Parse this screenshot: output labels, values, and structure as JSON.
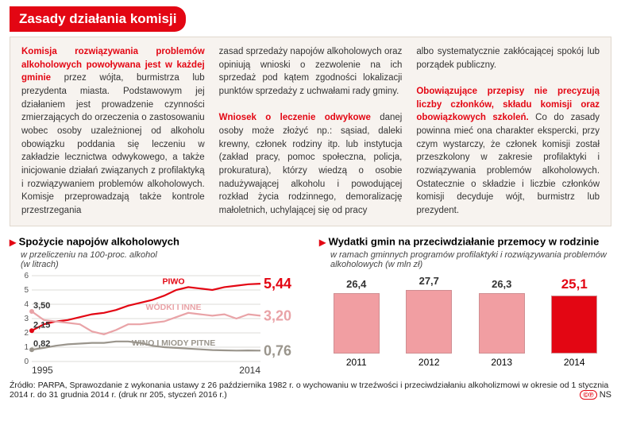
{
  "header": {
    "title": "Zasady działania komisji"
  },
  "text": {
    "col1_lead": "Komisja rozwiązywania problemów alkoholowych powoływana jest w każdej gminie",
    "col1_rest": " przez wójta, burmistrza lub prezydenta miasta. Podstawowym jej działaniem jest prowadzenie czynności zmierzających do orzeczenia o zastosowaniu wobec osoby uzależnionej od alkoholu obowiązku poddania się leczeniu w zakładzie lecznictwa odwykowego, a także inicjowanie działań związanych z profilaktyką i rozwiązywaniem problemów alkoholowych. Komisje przeprowadzają także kontrole przestrzegania",
    "col2_top": "zasad sprzedaży napojów alkoholowych oraz opiniują wnioski o zezwolenie na ich sprzedaż pod kątem zgodności lokalizacji punktów sprzedaży z uchwałami rady gminy.",
    "col2_lead": "Wniosek o leczenie odwykowe",
    "col2_rest": " danej osoby może złożyć np.: sąsiad, daleki krewny, członek rodziny itp. lub instytucja (zakład pracy, pomoc społeczna, policja, prokuratura), którzy wiedzą o osobie nadużywającej alkoholu i powodującej rozkład życia rodzinnego, demoralizację małoletnich, uchylającej się od pracy",
    "col3_top": "albo systematycznie zakłócającej spokój lub porządek publiczny.",
    "col3_lead": "Obowiązujące przepisy nie precyzują liczby członków, składu komisji oraz obowiązkowych szkoleń.",
    "col3_rest": " Co do zasady powinna mieć ona charakter ekspercki, przy czym wystarczy, że członek komisji został przeszkolony w zakresie profilaktyki i rozwiązywania problemów alkoholowych. Ostatecznie o składzie i liczbie członków komisji decyduje wójt, burmistrz lub prezydent."
  },
  "chart1": {
    "title": "Spożycie napojów alkoholowych",
    "subtitle": "w przeliczeniu na 100-proc. alkohol\n(w litrach)",
    "x_start_label": "1995",
    "x_end_label": "2014",
    "ylim": [
      0,
      6
    ],
    "yticks": [
      0,
      1,
      2,
      3,
      4,
      5,
      6
    ],
    "grid_color": "#bdb8b0",
    "series": [
      {
        "name": "PIWO",
        "label": "PIWO",
        "color": "#e30613",
        "end_value": "5,44",
        "y": [
          2.15,
          2.6,
          2.8,
          2.9,
          3.1,
          3.3,
          3.4,
          3.6,
          3.9,
          4.1,
          4.3,
          4.6,
          5.0,
          5.2,
          5.1,
          5.0,
          5.2,
          5.3,
          5.4,
          5.44
        ]
      },
      {
        "name": "WODKI",
        "label": "WÓDKI I INNE",
        "color": "#e9a3a7",
        "end_value": "3,20",
        "y": [
          3.5,
          2.9,
          2.8,
          2.7,
          2.6,
          2.1,
          1.9,
          2.2,
          2.6,
          2.6,
          2.7,
          2.8,
          3.1,
          3.4,
          3.3,
          3.2,
          3.3,
          3.0,
          3.3,
          3.2
        ]
      },
      {
        "name": "WINO",
        "label": "WINO I MIODY PITNE",
        "color": "#9a958c",
        "end_value": "0,76",
        "y": [
          0.82,
          0.95,
          1.1,
          1.2,
          1.25,
          1.3,
          1.3,
          1.4,
          1.4,
          1.3,
          1.1,
          1.0,
          0.95,
          0.9,
          0.85,
          0.8,
          0.78,
          0.76,
          0.77,
          0.76
        ]
      }
    ],
    "start_markers": [
      {
        "value": "3,50",
        "y": 3.5,
        "color": "#e9a3a7"
      },
      {
        "value": "2,15",
        "y": 2.15,
        "color": "#e30613"
      },
      {
        "value": "0,82",
        "y": 0.82,
        "color": "#9a958c"
      }
    ],
    "title_fontsize": 13,
    "label_fontsize": 11,
    "value_fontsize": 20
  },
  "chart2": {
    "title": "Wydatki gmin na przeciwdziałanie przemocy w rodzinie",
    "subtitle": "w ramach gminnych programów profilaktyki i rozwiązywania problemów alkoholowych (w mln zł)",
    "bars": [
      {
        "year": "2011",
        "value": "26,4",
        "h": 0.95,
        "color": "#f19ea2",
        "val_color": "#333"
      },
      {
        "year": "2012",
        "value": "27,7",
        "h": 1.0,
        "color": "#f19ea2",
        "val_color": "#333"
      },
      {
        "year": "2013",
        "value": "26,3",
        "h": 0.95,
        "color": "#f19ea2",
        "val_color": "#333"
      },
      {
        "year": "2014",
        "value": "25,1",
        "h": 0.91,
        "color": "#e30613",
        "val_color": "#e30613"
      }
    ],
    "bar_border": "#cf8e92",
    "title_fontsize": 13,
    "label_fontsize": 11
  },
  "source": "Źródło: PARPA, Sprawozdanie z wykonania ustawy z 26 października 1982 r. o wychowaniu w trzeźwości i przeciwdziałaniu alkoholizmowi w okresie od 1 stycznia 2014 r. do 31 grudnia 2014 r. (druk nr 205, styczeń 2016 r.)",
  "footer": {
    "copyright": "©℗",
    "initials": "NS"
  }
}
